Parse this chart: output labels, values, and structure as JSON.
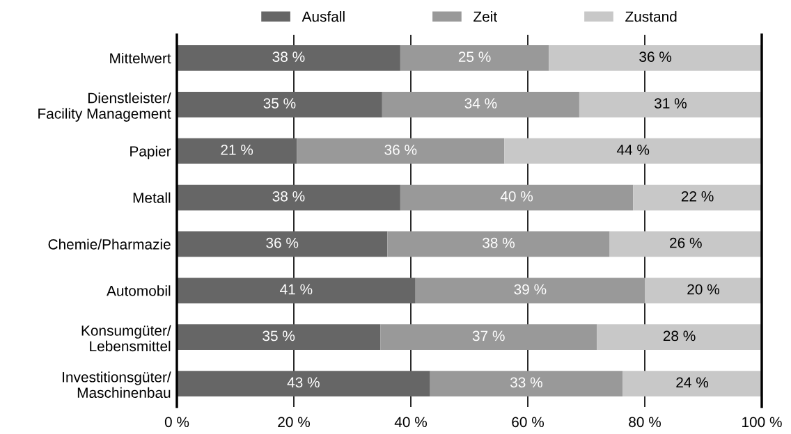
{
  "chart_data": {
    "type": "bar",
    "orientation": "horizontal",
    "stacked": true,
    "categories": [
      "Mittelwert",
      "Dienstleister/\nFacility Management",
      "Papier",
      "Metall",
      "Chemie/Pharmazie",
      "Automobil",
      "Konsumgüter/\nLebensmittel",
      "Investitionsgüter/\nMaschinenbau"
    ],
    "series": [
      {
        "name": "Ausfall",
        "color": "#666666",
        "values": [
          38.2,
          35.1,
          20.5,
          38.2,
          36.0,
          40.8,
          34.8,
          43.3
        ],
        "value_labels": [
          "38 %",
          "35 %",
          "21 %",
          "38 %",
          "36 %",
          "41 %",
          "35 %",
          "43 %"
        ]
      },
      {
        "name": "Zeit",
        "color": "#999999",
        "values": [
          25.4,
          33.7,
          35.5,
          39.8,
          38.0,
          39.2,
          37.0,
          32.9
        ],
        "value_labels": [
          "25 %",
          "34 %",
          "36 %",
          "40 %",
          "38 %",
          "39 %",
          "37 %",
          "33 %"
        ]
      },
      {
        "name": "Zustand",
        "color": "#c8c8c8",
        "values": [
          36.4,
          31.2,
          44.0,
          22.0,
          26.0,
          20.0,
          28.2,
          23.8
        ],
        "value_labels": [
          "36 %",
          "31 %",
          "44 %",
          "22 %",
          "26 %",
          "20 %",
          "28 %",
          "24 %"
        ]
      }
    ],
    "xlim": [
      0,
      100
    ],
    "xticks": [
      {
        "value": 0,
        "label": "0 %"
      },
      {
        "value": 20,
        "label": "20 %"
      },
      {
        "value": 40,
        "label": "40 %"
      },
      {
        "value": 60,
        "label": "60 %"
      },
      {
        "value": 80,
        "label": "80 %"
      },
      {
        "value": 100,
        "label": "100 %"
      }
    ],
    "grid": "x",
    "legend": "top"
  }
}
